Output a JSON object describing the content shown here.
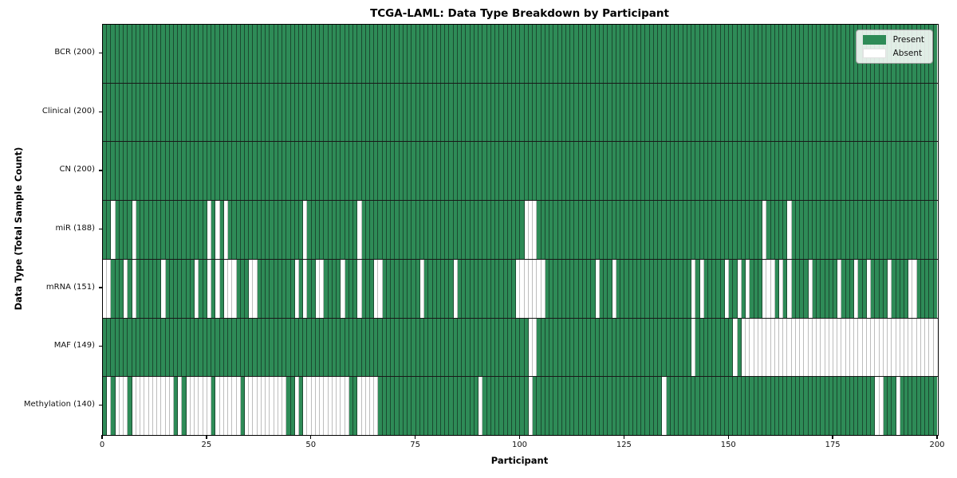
{
  "colors": {
    "present": "#2e8b57",
    "absent": "#ffffff",
    "present_edge": "#1b4a30",
    "absent_edge": "#bdbdbd",
    "row_divider": "#181818",
    "plot_border": "#000000"
  },
  "chart_data": {
    "type": "heatmap",
    "title": "TCGA-LAML: Data Type Breakdown by Participant",
    "xlabel": "Participant",
    "ylabel": "Data Type (Total Sample Count)",
    "x_range": [
      0,
      200
    ],
    "participants": 200,
    "x_ticks": [
      0,
      25,
      50,
      75,
      100,
      125,
      150,
      175,
      200
    ],
    "grid": false,
    "legend_position": "upper right",
    "legend_entries": [
      "Present",
      "Absent"
    ],
    "rows": [
      {
        "label": "BCR (200)",
        "data_type": "BCR",
        "present_count": 200,
        "absent_participants": []
      },
      {
        "label": "Clinical (200)",
        "data_type": "Clinical",
        "present_count": 200,
        "absent_participants": []
      },
      {
        "label": "CN (200)",
        "data_type": "CN",
        "present_count": 200,
        "absent_participants": []
      },
      {
        "label": "miR (188)",
        "data_type": "miR",
        "present_count": 188,
        "absent_participants": [
          2,
          7,
          25,
          27,
          29,
          48,
          61,
          101,
          102,
          103,
          158,
          164
        ]
      },
      {
        "label": "mRNA (151)",
        "data_type": "mRNA",
        "present_count": 151,
        "absent_participants": [
          0,
          1,
          5,
          7,
          14,
          22,
          25,
          27,
          29,
          30,
          31,
          35,
          36,
          46,
          48,
          51,
          52,
          57,
          61,
          65,
          66,
          76,
          84,
          99,
          100,
          101,
          102,
          103,
          104,
          105,
          118,
          122,
          141,
          143,
          149,
          152,
          154,
          158,
          159,
          160,
          162,
          164,
          169,
          176,
          180,
          183,
          188,
          193,
          194
        ]
      },
      {
        "label": "MAF (149)",
        "data_type": "MAF",
        "present_count": 149,
        "absent_participants": [
          102,
          103,
          141,
          151,
          153,
          154,
          155,
          156,
          157,
          158,
          159,
          160,
          161,
          162,
          163,
          164,
          165,
          166,
          167,
          168,
          169,
          170,
          171,
          172,
          173,
          174,
          175,
          176,
          177,
          178,
          179,
          180,
          181,
          182,
          183,
          184,
          185,
          186,
          187,
          188,
          189,
          190,
          191,
          192,
          193,
          194,
          195,
          196,
          197,
          198,
          199
        ]
      },
      {
        "label": "Methylation (140)",
        "data_type": "Methylation",
        "present_count": 140,
        "absent_participants": [
          1,
          3,
          4,
          5,
          7,
          8,
          9,
          10,
          11,
          12,
          13,
          14,
          15,
          16,
          18,
          20,
          21,
          22,
          23,
          24,
          25,
          27,
          28,
          29,
          30,
          31,
          32,
          34,
          35,
          36,
          37,
          38,
          39,
          40,
          41,
          42,
          43,
          46,
          48,
          49,
          50,
          51,
          52,
          53,
          54,
          55,
          56,
          57,
          58,
          61,
          62,
          63,
          64,
          65,
          90,
          102,
          134,
          185,
          186,
          190
        ]
      }
    ]
  }
}
